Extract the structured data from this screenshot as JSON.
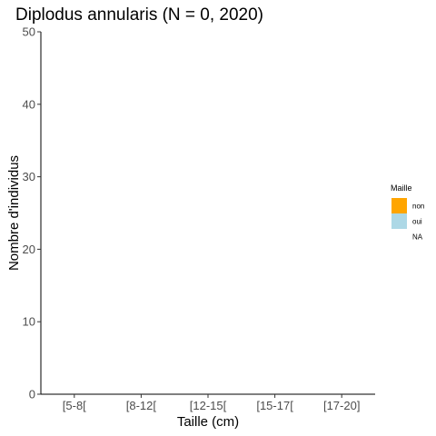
{
  "chart_data": {
    "type": "bar",
    "title": "Diplodus annularis (N = 0, 2020)",
    "xlabel": "Taille (cm)",
    "ylabel": "Nombre d'individus",
    "categories": [
      "[5-8[",
      "[8-12[",
      "[12-15[",
      "[15-17[",
      "[17-20]"
    ],
    "series": [
      {
        "name": "non",
        "values": [
          0,
          0,
          0,
          0,
          0
        ]
      },
      {
        "name": "oui",
        "values": [
          0,
          0,
          0,
          0,
          0
        ]
      },
      {
        "name": "NA",
        "values": [
          0,
          0,
          0,
          0,
          0
        ]
      }
    ],
    "ylim": [
      0,
      50
    ],
    "yticks": [
      0,
      10,
      20,
      30,
      40,
      50
    ],
    "grid": false,
    "legend": {
      "title": "Maille",
      "placement": "right",
      "entries": [
        {
          "label": "non",
          "color": "#FFA500"
        },
        {
          "label": "oui",
          "color": "#ADD8E6"
        },
        {
          "label": "NA",
          "color": ""
        }
      ]
    }
  }
}
